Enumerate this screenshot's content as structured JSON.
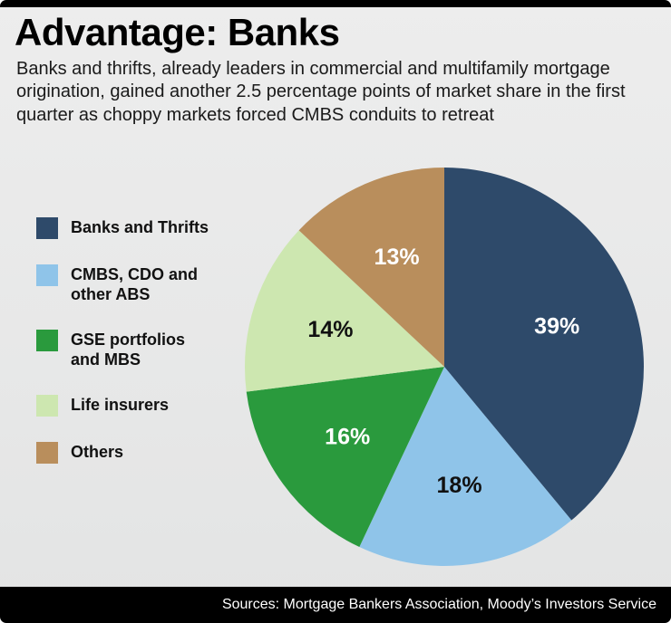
{
  "header": {
    "title": "Advantage: Banks",
    "subtitle": "Banks and thrifts, already leaders in commercial and multifamily mortgage origination, gained another 2.5 percentage points of market share in the first quarter as choppy markets forced CMBS conduits to retreat"
  },
  "chart_data": {
    "type": "pie",
    "title": "Advantage: Banks",
    "direction": "clockwise",
    "start_angle_deg": 0,
    "legend_position": "left",
    "slices": [
      {
        "label": "Banks and Thrifts",
        "legend_label": "Banks and Thrifts",
        "value": 39,
        "pct_label": "39%",
        "color": "#2e4a6a",
        "label_color": "#ffffff"
      },
      {
        "label": "CMBS, CDO and other ABS",
        "legend_label": "CMBS, CDO and\nother ABS",
        "value": 18,
        "pct_label": "18%",
        "color": "#8fc4e9",
        "label_color": "#111111"
      },
      {
        "label": "GSE portfolios and MBS",
        "legend_label": "GSE portfolios\nand MBS",
        "value": 16,
        "pct_label": "16%",
        "color": "#2a9a3d",
        "label_color": "#ffffff"
      },
      {
        "label": "Life insurers",
        "legend_label": "Life insurers",
        "value": 14,
        "pct_label": "14%",
        "color": "#cde7b0",
        "label_color": "#111111"
      },
      {
        "label": "Others",
        "legend_label": "Others",
        "value": 13,
        "pct_label": "13%",
        "color": "#b98e5c",
        "label_color": "#ffffff"
      }
    ]
  },
  "footer": {
    "source": "Sources: Mortgage Bankers Association, Moody’s Investors Service"
  },
  "colors": {
    "background": "#e9e9e9",
    "bar": "#000000"
  }
}
